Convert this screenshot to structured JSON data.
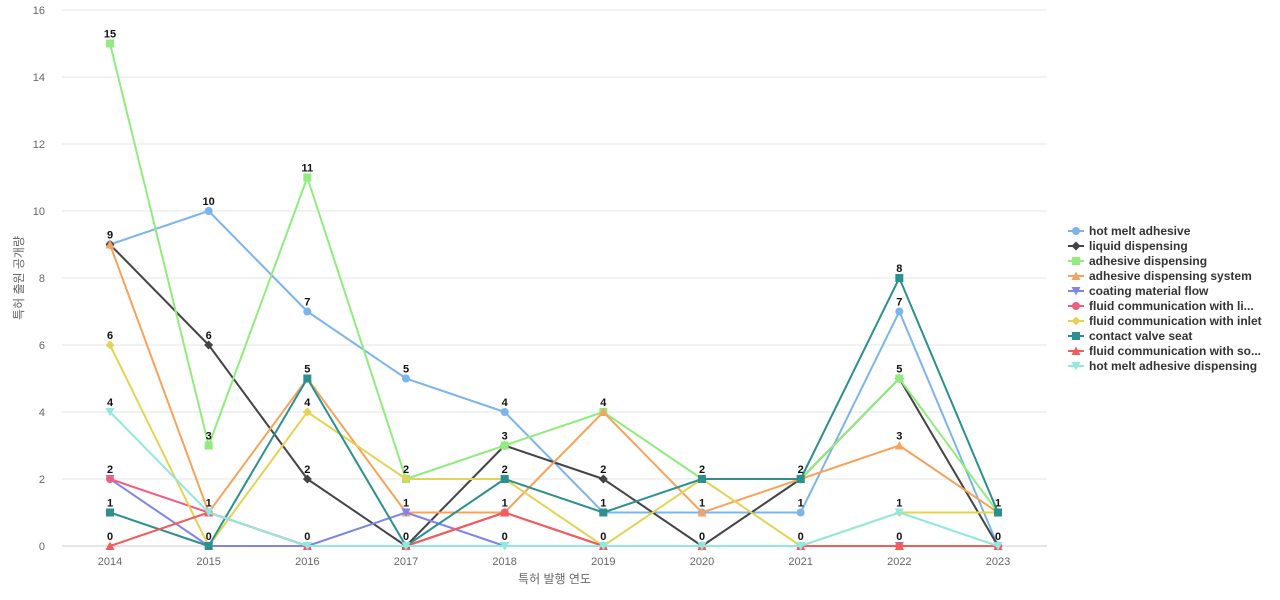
{
  "chart_data": {
    "type": "line",
    "title": "",
    "xlabel": "특허 발행 연도",
    "ylabel": "특허 출원 공개량",
    "x": [
      "2014",
      "2015",
      "2016",
      "2017",
      "2018",
      "2019",
      "2020",
      "2021",
      "2022",
      "2023"
    ],
    "ylim": [
      0,
      16
    ],
    "yticks": [
      0,
      2,
      4,
      6,
      8,
      10,
      12,
      14,
      16
    ],
    "grid": true,
    "legend_position": "right",
    "series": [
      {
        "name": "hot melt adhesive",
        "color": "#7cb5ec",
        "marker": "circle",
        "values": [
          9,
          10,
          7,
          5,
          4,
          1,
          1,
          1,
          7,
          0
        ]
      },
      {
        "name": "liquid dispensing",
        "color": "#434348",
        "marker": "diamond",
        "values": [
          9,
          6,
          2,
          0,
          3,
          2,
          0,
          2,
          5,
          0
        ]
      },
      {
        "name": "adhesive dispensing",
        "color": "#90ed7d",
        "marker": "square",
        "values": [
          15,
          3,
          11,
          2,
          3,
          4,
          2,
          2,
          5,
          1
        ]
      },
      {
        "name": "adhesive dispensing system",
        "color": "#f7a35c",
        "marker": "triangle",
        "values": [
          9,
          1,
          5,
          1,
          1,
          4,
          1,
          2,
          3,
          1
        ]
      },
      {
        "name": "coating material flow",
        "color": "#8085e9",
        "marker": "triangle-down",
        "values": [
          2,
          0,
          0,
          1,
          0,
          0,
          0,
          0,
          0,
          0
        ]
      },
      {
        "name": "fluid communication with li...",
        "color": "#f15c80",
        "marker": "circle",
        "values": [
          2,
          1,
          0,
          0,
          1,
          0,
          0,
          0,
          0,
          0
        ]
      },
      {
        "name": "fluid communication with inlet",
        "color": "#e4d354",
        "marker": "diamond",
        "values": [
          6,
          0,
          4,
          2,
          2,
          0,
          2,
          0,
          1,
          1
        ]
      },
      {
        "name": "contact valve seat",
        "color": "#2b908f",
        "marker": "square",
        "values": [
          1,
          0,
          5,
          0,
          2,
          1,
          2,
          2,
          8,
          1
        ]
      },
      {
        "name": "fluid communication with so...",
        "color": "#f45b5b",
        "marker": "triangle",
        "values": [
          0,
          1,
          0,
          0,
          1,
          0,
          0,
          0,
          0,
          0
        ]
      },
      {
        "name": "hot melt adhesive dispensing",
        "color": "#91e8e1",
        "marker": "triangle-down",
        "values": [
          4,
          1,
          0,
          0,
          0,
          0,
          0,
          0,
          1,
          0
        ]
      }
    ],
    "data_labels": [
      {
        "x": "2014",
        "series": "adhesive dispensing",
        "text": "15"
      },
      {
        "x": "2014",
        "series": "liquid dispensing",
        "text": "9"
      },
      {
        "x": "2014",
        "series": "fluid communication with inlet",
        "text": "6"
      },
      {
        "x": "2014",
        "series": "hot melt adhesive dispensing",
        "text": "4"
      },
      {
        "x": "2014",
        "series": "fluid communication with li...",
        "text": "2"
      },
      {
        "x": "2014",
        "series": "contact valve seat",
        "text": "1"
      },
      {
        "x": "2014",
        "series": "fluid communication with so...",
        "text": "0"
      },
      {
        "x": "2015",
        "series": "hot melt adhesive",
        "text": "10"
      },
      {
        "x": "2015",
        "series": "liquid dispensing",
        "text": "6"
      },
      {
        "x": "2015",
        "series": "adhesive dispensing",
        "text": "3"
      },
      {
        "x": "2015",
        "series": "adhesive dispensing system",
        "text": "1"
      },
      {
        "x": "2015",
        "series": "contact valve seat",
        "text": "0"
      },
      {
        "x": "2016",
        "series": "adhesive dispensing",
        "text": "11"
      },
      {
        "x": "2016",
        "series": "hot melt adhesive",
        "text": "7"
      },
      {
        "x": "2016",
        "series": "contact valve seat",
        "text": "5"
      },
      {
        "x": "2016",
        "series": "fluid communication with inlet",
        "text": "4"
      },
      {
        "x": "2016",
        "series": "liquid dispensing",
        "text": "2"
      },
      {
        "x": "2016",
        "series": "fluid communication with so...",
        "text": "0"
      },
      {
        "x": "2017",
        "series": "hot melt adhesive",
        "text": "5"
      },
      {
        "x": "2017",
        "series": "adhesive dispensing",
        "text": "2"
      },
      {
        "x": "2017",
        "series": "coating material flow",
        "text": "1"
      },
      {
        "x": "2017",
        "series": "liquid dispensing",
        "text": "0"
      },
      {
        "x": "2018",
        "series": "hot melt adhesive",
        "text": "4"
      },
      {
        "x": "2018",
        "series": "adhesive dispensing",
        "text": "3"
      },
      {
        "x": "2018",
        "series": "contact valve seat",
        "text": "2"
      },
      {
        "x": "2018",
        "series": "fluid communication with so...",
        "text": "1"
      },
      {
        "x": "2018",
        "series": "coating material flow",
        "text": "0"
      },
      {
        "x": "2019",
        "series": "adhesive dispensing",
        "text": "4"
      },
      {
        "x": "2019",
        "series": "liquid dispensing",
        "text": "2"
      },
      {
        "x": "2019",
        "series": "contact valve seat",
        "text": "1"
      },
      {
        "x": "2019",
        "series": "fluid communication with so...",
        "text": "0"
      },
      {
        "x": "2020",
        "series": "adhesive dispensing",
        "text": "2"
      },
      {
        "x": "2020",
        "series": "adhesive dispensing system",
        "text": "1"
      },
      {
        "x": "2020",
        "series": "liquid dispensing",
        "text": "0"
      },
      {
        "x": "2021",
        "series": "adhesive dispensing",
        "text": "2"
      },
      {
        "x": "2021",
        "series": "hot melt adhesive",
        "text": "1"
      },
      {
        "x": "2021",
        "series": "fluid communication with so...",
        "text": "0"
      },
      {
        "x": "2022",
        "series": "contact valve seat",
        "text": "8"
      },
      {
        "x": "2022",
        "series": "hot melt adhesive",
        "text": "7"
      },
      {
        "x": "2022",
        "series": "adhesive dispensing",
        "text": "5"
      },
      {
        "x": "2022",
        "series": "adhesive dispensing system",
        "text": "3"
      },
      {
        "x": "2022",
        "series": "fluid communication with inlet",
        "text": "1"
      },
      {
        "x": "2022",
        "series": "fluid communication with so...",
        "text": "0"
      },
      {
        "x": "2023",
        "series": "contact valve seat",
        "text": "1"
      },
      {
        "x": "2023",
        "series": "hot melt adhesive",
        "text": "0"
      }
    ]
  }
}
